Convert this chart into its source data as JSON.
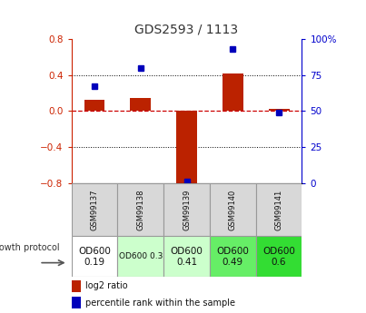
{
  "title": "GDS2593 / 1113",
  "samples": [
    "GSM99137",
    "GSM99138",
    "GSM99139",
    "GSM99140",
    "GSM99141"
  ],
  "log2_ratio": [
    0.13,
    0.15,
    -0.83,
    0.42,
    0.02
  ],
  "percentile_rank": [
    67,
    80,
    1,
    93,
    49
  ],
  "ylim_left": [
    -0.8,
    0.8
  ],
  "ylim_right": [
    0,
    100
  ],
  "yticks_left": [
    -0.8,
    -0.4,
    0.0,
    0.4,
    0.8
  ],
  "yticks_right": [
    0,
    25,
    50,
    75,
    100
  ],
  "ytick_labels_right": [
    "0",
    "25",
    "50",
    "75",
    "100%"
  ],
  "bar_color": "#bb2200",
  "dot_color": "#0000bb",
  "dashed_color": "#cc0000",
  "dot_color_text": "#0000bb",
  "protocol_labels": [
    "OD600\n0.19",
    "OD600 0.3",
    "OD600\n0.41",
    "OD600\n0.49",
    "OD600\n0.6"
  ],
  "protocol_bg": [
    "#ffffff",
    "#ccffcc",
    "#ccffcc",
    "#66ee66",
    "#33dd33"
  ],
  "protocol_fontsize": [
    7.5,
    6.5,
    7.5,
    7.5,
    7.5
  ],
  "legend_red": "log2 ratio",
  "legend_blue": "percentile rank within the sample",
  "title_color": "#333333",
  "left_axis_color": "#cc2200",
  "right_axis_color": "#0000cc"
}
